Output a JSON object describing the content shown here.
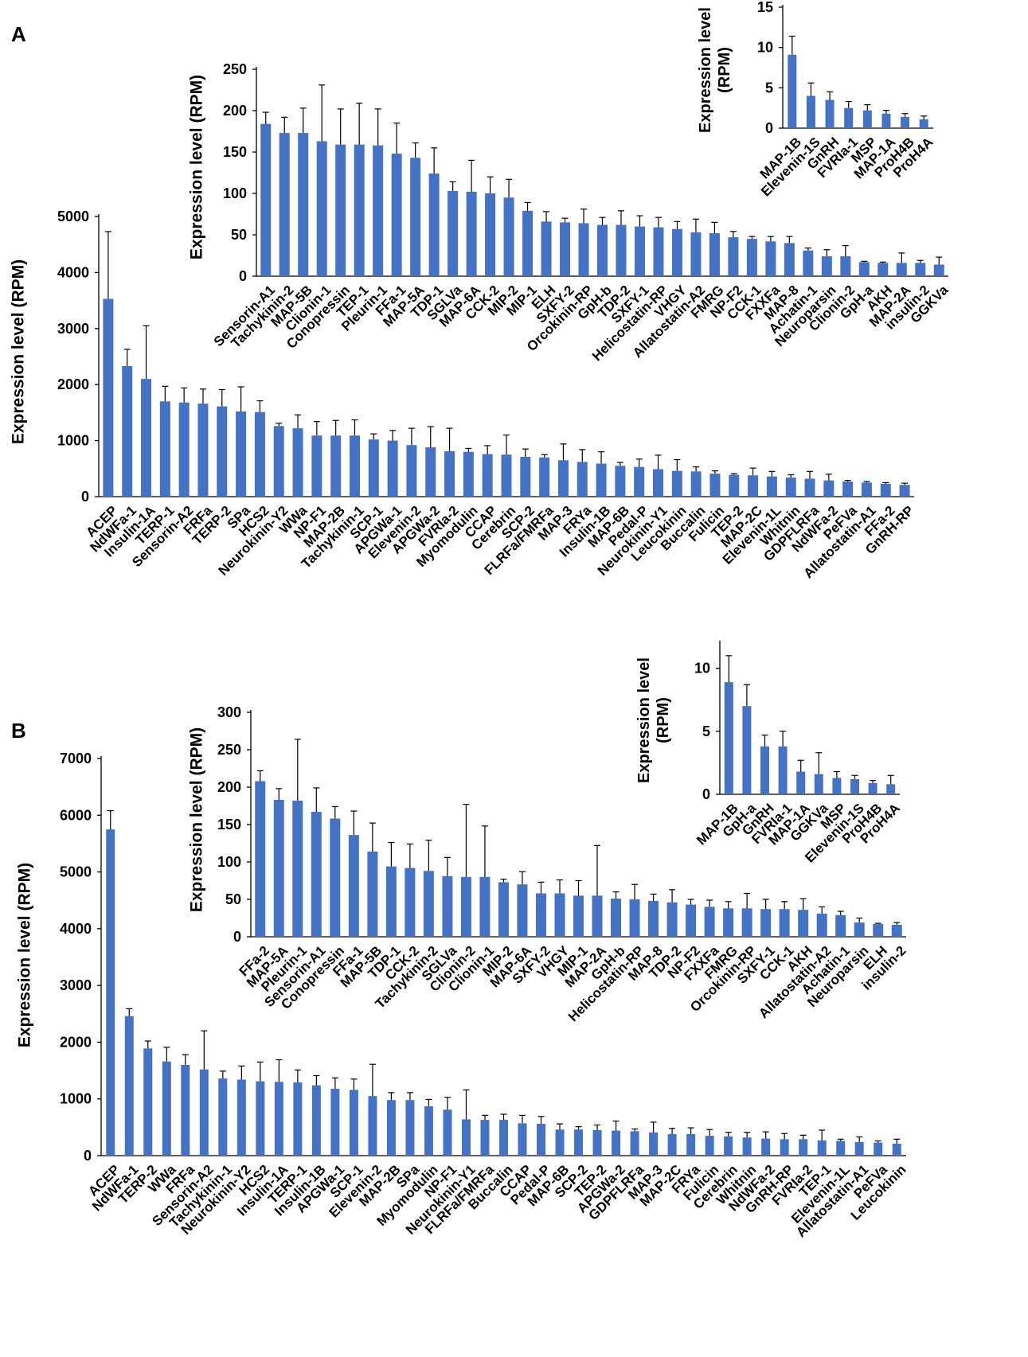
{
  "panel_labels": {
    "a": "A",
    "b": "B"
  },
  "chart_data": [
    {
      "id": "A_main",
      "panel": "A",
      "type": "bar",
      "ylabel": "Expression level (RPM)",
      "ylim": [
        0,
        5000
      ],
      "yticks": [
        0,
        1000,
        2000,
        3000,
        4000,
        5000
      ],
      "categories": [
        "ACEP",
        "NdWFa-1",
        "Insulin-1A",
        "TERP-1",
        "Sensorin-A2",
        "FRFa",
        "TERP-2",
        "SPa",
        "HCS2",
        "Neurokinin-Y2",
        "WWa",
        "NP-F1",
        "MAP-2B",
        "Tachykinin-1",
        "SCP-1",
        "APGWa-1",
        "Elevenin-2",
        "APGWa-2",
        "FVRIa-2",
        "Myomodulin",
        "CCAP",
        "Cerebrin",
        "SCP-2",
        "FLRFa/FMRFa",
        "MAP-3",
        "FRYa",
        "Insulin-1B",
        "MAP-6B",
        "Pedal-P",
        "Neurokinin-Y1",
        "Leucokinin",
        "Buccalin",
        "Fulicin",
        "TEP-2",
        "MAP-2C",
        "Elevenin-1L",
        "Whitnin",
        "GDPFLRFa",
        "NdWFa-2",
        "PeFVa",
        "Allatostatin-A1",
        "FFa-2",
        "GnRH-RP"
      ],
      "values": [
        3530,
        2330,
        2100,
        1700,
        1680,
        1660,
        1610,
        1520,
        1510,
        1260,
        1220,
        1090,
        1090,
        1090,
        1020,
        1000,
        920,
        880,
        810,
        800,
        760,
        750,
        710,
        700,
        650,
        620,
        590,
        550,
        530,
        490,
        460,
        450,
        410,
        390,
        380,
        360,
        340,
        320,
        290,
        270,
        250,
        230,
        210
      ],
      "errors": [
        1200,
        300,
        950,
        270,
        260,
        260,
        300,
        440,
        200,
        50,
        240,
        250,
        270,
        280,
        100,
        180,
        300,
        370,
        410,
        60,
        150,
        350,
        140,
        50,
        290,
        220,
        210,
        60,
        140,
        250,
        200,
        80,
        50,
        20,
        130,
        90,
        50,
        130,
        110,
        20,
        20,
        20,
        30
      ]
    },
    {
      "id": "A_mid",
      "panel": "A",
      "type": "bar",
      "ylabel": "Expression level (RPM)",
      "ylim": [
        0,
        250
      ],
      "yticks": [
        0,
        50,
        100,
        150,
        200,
        250
      ],
      "categories": [
        "Sensorin-A1",
        "Tachykinin-2",
        "MAP-5B",
        "Clionin-1",
        "Conopressin",
        "TEP-1",
        "Pleurin-1",
        "FFa-1",
        "MAP-5A",
        "TDP-1",
        "SGLVa",
        "MAP-6A",
        "CCK-2",
        "MIP-2",
        "MIP-1",
        "ELH",
        "SXFY-2",
        "Orcokinin-RP",
        "GpH-b",
        "TDP-2",
        "SXFY-1",
        "Helicostatin-RP",
        "VHGY",
        "Allatostatin-A2",
        "FMRG",
        "NP-F2",
        "CCK-1",
        "FXXFa",
        "MAP-8",
        "Achatin-1",
        "Neuroparsin",
        "Clionin-2",
        "GpH-a",
        "AKH",
        "MAP-2A",
        "insulin-2",
        "GGKVa"
      ],
      "values": [
        184,
        173,
        173,
        163,
        159,
        159,
        158,
        148,
        143,
        124,
        103,
        102,
        100,
        95,
        79,
        66,
        65,
        64,
        62,
        62,
        60,
        59,
        57,
        53,
        52,
        47,
        45,
        42,
        40,
        31,
        24,
        24,
        17,
        16,
        16,
        16,
        14
      ],
      "errors": [
        14,
        19,
        30,
        68,
        43,
        50,
        44,
        37,
        18,
        31,
        11,
        38,
        20,
        22,
        10,
        12,
        5,
        17,
        9,
        17,
        13,
        12,
        9,
        16,
        13,
        7,
        3,
        6,
        8,
        3,
        8,
        13,
        1,
        1,
        12,
        3,
        9
      ]
    },
    {
      "id": "A_inset",
      "panel": "A",
      "type": "bar",
      "ylabel": "Expression level (RPM)",
      "ylim": [
        0,
        15
      ],
      "yticks": [
        0,
        5,
        10,
        15
      ],
      "categories": [
        "MAP-1B",
        "Elevenin-1S",
        "GnRH",
        "FVRIa-1",
        "MSP",
        "MAP-1A",
        "ProH4B",
        "ProH4A"
      ],
      "values": [
        9.1,
        4.0,
        3.5,
        2.5,
        2.2,
        1.8,
        1.4,
        1.1
      ],
      "errors": [
        2.3,
        1.6,
        1.0,
        0.8,
        0.7,
        0.4,
        0.4,
        0.4
      ]
    },
    {
      "id": "B_main",
      "panel": "B",
      "type": "bar",
      "ylabel": "Expression level (RPM)",
      "ylim": [
        0,
        7000
      ],
      "yticks": [
        0,
        1000,
        2000,
        3000,
        4000,
        5000,
        6000,
        7000
      ],
      "categories": [
        "ACEP",
        "NdWFa-1",
        "TERP-2",
        "WWa",
        "FRFa",
        "Sensorin-A2",
        "Tachykinin-1",
        "Neurokinin-Y2",
        "HCS2",
        "Insulin-1A",
        "TERP-1",
        "Insulin-1B",
        "APGWa-1",
        "SCP-1",
        "Elevenin-2",
        "MAP-2B",
        "SPa",
        "Myomodulin",
        "NP-F1",
        "Neurokinin-Y1",
        "FLRFa/FMRFa",
        "Buccalin",
        "CCAP",
        "Pedal-P",
        "MAP-6B",
        "SCP-2",
        "TEP-2",
        "APGWa-2",
        "GDPFLRFa",
        "MAP-3",
        "MAP-2C",
        "FRYa",
        "Fulicin",
        "Cerebrin",
        "Whitnin",
        "NdWFa-2",
        "GnRH-RP",
        "FVRIa-2",
        "TEP-1",
        "Elevenin-1L",
        "Allatostatin-A1",
        "PeFVa",
        "Leucokinin"
      ],
      "values": [
        5750,
        2460,
        1890,
        1660,
        1600,
        1520,
        1360,
        1340,
        1310,
        1300,
        1290,
        1240,
        1180,
        1160,
        1050,
        980,
        980,
        870,
        810,
        640,
        630,
        630,
        570,
        560,
        460,
        460,
        450,
        440,
        430,
        410,
        380,
        380,
        350,
        340,
        320,
        300,
        290,
        290,
        270,
        260,
        240,
        230,
        210
      ],
      "errors": [
        330,
        130,
        130,
        250,
        180,
        680,
        130,
        240,
        340,
        390,
        220,
        170,
        190,
        190,
        560,
        130,
        130,
        120,
        220,
        520,
        80,
        100,
        140,
        130,
        100,
        50,
        90,
        170,
        40,
        180,
        100,
        110,
        110,
        70,
        90,
        120,
        100,
        70,
        180,
        30,
        90,
        30,
        80
      ]
    },
    {
      "id": "B_mid",
      "panel": "B",
      "type": "bar",
      "ylabel": "Expression level (RPM)",
      "ylim": [
        0,
        300
      ],
      "yticks": [
        0,
        50,
        100,
        150,
        200,
        250,
        300
      ],
      "categories": [
        "FFa-2",
        "MAP-5A",
        "Pleurin-1",
        "Sensorin-A1",
        "Conopressin",
        "FFa-1",
        "MAP-5B",
        "TDP-1",
        "CCK-2",
        "Tachykinin-2",
        "SGLVa",
        "Clionin-2",
        "Clionin-1",
        "MIP-2",
        "MAP-6A",
        "SXFY-2",
        "VHGY",
        "MIP-1",
        "MAP-2A",
        "GpH-b",
        "Helicostatin-RP",
        "MAP-8",
        "TDP-2",
        "NP-F2",
        "FXXFa",
        "FMRG",
        "Orcokinin-RP",
        "SXFY-1",
        "CCK-1",
        "AKH",
        "Allatostatin-A2",
        "Achatin-1",
        "Neuroparsin",
        "ELH",
        "insulin-2"
      ],
      "values": [
        208,
        183,
        182,
        167,
        158,
        136,
        114,
        94,
        92,
        88,
        81,
        80,
        80,
        73,
        70,
        58,
        58,
        55,
        55,
        51,
        50,
        48,
        46,
        43,
        40,
        38,
        38,
        37,
        37,
        36,
        31,
        29,
        19,
        17,
        16
      ],
      "errors": [
        14,
        15,
        82,
        32,
        16,
        32,
        38,
        32,
        32,
        41,
        25,
        97,
        68,
        4,
        17,
        15,
        18,
        20,
        67,
        9,
        20,
        9,
        17,
        7,
        9,
        9,
        20,
        13,
        10,
        15,
        9,
        5,
        6,
        1,
        3
      ]
    },
    {
      "id": "B_inset",
      "panel": "B",
      "type": "bar",
      "ylabel": "Expression level (RPM)",
      "ylim": [
        0,
        12
      ],
      "yticks": [
        0,
        5,
        10
      ],
      "categories": [
        "MAP-1B",
        "GpH-a",
        "GnRH",
        "FVRIa-1",
        "MAP-1A",
        "GGKVa",
        "MSP",
        "Elevenin-1S",
        "ProH4B",
        "ProH4A"
      ],
      "values": [
        8.9,
        7.0,
        3.8,
        3.8,
        1.8,
        1.6,
        1.3,
        1.2,
        0.9,
        0.8
      ],
      "errors": [
        2.1,
        1.7,
        0.9,
        1.2,
        0.9,
        1.7,
        0.5,
        0.3,
        0.2,
        0.7
      ]
    }
  ]
}
